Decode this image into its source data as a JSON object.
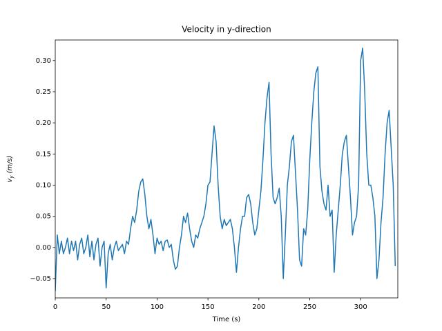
{
  "chart_data": {
    "type": "line",
    "title": "Velocity in y-direction",
    "xlabel": "Time (s)",
    "ylabel": [
      "v",
      "y",
      "(m/s)"
    ],
    "x": [
      0,
      2,
      4,
      6,
      8,
      10,
      12,
      14,
      16,
      18,
      20,
      22,
      24,
      26,
      28,
      30,
      32,
      34,
      36,
      38,
      40,
      42,
      44,
      46,
      48,
      50,
      52,
      54,
      56,
      58,
      60,
      62,
      64,
      66,
      68,
      70,
      72,
      74,
      76,
      78,
      80,
      82,
      84,
      86,
      88,
      90,
      92,
      94,
      96,
      98,
      100,
      102,
      104,
      106,
      108,
      110,
      112,
      114,
      116,
      118,
      120,
      122,
      124,
      126,
      128,
      130,
      132,
      134,
      136,
      138,
      140,
      142,
      144,
      146,
      148,
      150,
      152,
      154,
      156,
      158,
      160,
      162,
      164,
      166,
      168,
      170,
      172,
      174,
      176,
      178,
      180,
      182,
      184,
      186,
      188,
      190,
      192,
      194,
      196,
      198,
      200,
      202,
      204,
      206,
      208,
      210,
      212,
      214,
      216,
      218,
      220,
      222,
      224,
      226,
      228,
      230,
      232,
      234,
      236,
      238,
      240,
      242,
      244,
      246,
      248,
      250,
      252,
      254,
      256,
      258,
      260,
      262,
      264,
      266,
      268,
      270,
      272,
      274,
      276,
      278,
      280,
      282,
      284,
      286,
      288,
      290,
      292,
      294,
      296,
      298,
      300,
      302,
      304,
      306,
      308,
      310,
      312,
      314,
      316,
      318,
      320,
      322,
      324,
      326,
      328,
      330,
      332,
      334
    ],
    "series": [
      {
        "color": "#1f77b4",
        "values": [
          -0.07,
          0.02,
          -0.01,
          0.01,
          -0.01,
          0.0,
          0.015,
          -0.01,
          0.01,
          -0.005,
          0.01,
          -0.02,
          0.005,
          0.015,
          -0.01,
          0.0,
          0.02,
          -0.015,
          0.01,
          -0.02,
          0.005,
          0.015,
          -0.03,
          0.0,
          0.01,
          -0.065,
          -0.01,
          0.005,
          -0.02,
          0.0,
          0.01,
          -0.005,
          0.0,
          0.005,
          -0.01,
          0.01,
          0.005,
          0.03,
          0.05,
          0.04,
          0.06,
          0.09,
          0.105,
          0.11,
          0.085,
          0.05,
          0.03,
          0.045,
          0.02,
          -0.01,
          0.015,
          0.005,
          0.01,
          -0.005,
          0.01,
          0.012,
          0.0,
          0.005,
          -0.02,
          -0.035,
          -0.03,
          0.0,
          0.02,
          0.05,
          0.04,
          0.055,
          0.03,
          0.01,
          0.0,
          0.02,
          0.015,
          0.03,
          0.04,
          0.05,
          0.07,
          0.1,
          0.105,
          0.15,
          0.195,
          0.17,
          0.1,
          0.05,
          0.03,
          0.045,
          0.035,
          0.04,
          0.045,
          0.03,
          0.0,
          -0.04,
          0.0,
          0.03,
          0.05,
          0.05,
          0.08,
          0.085,
          0.07,
          0.04,
          0.02,
          0.03,
          0.06,
          0.09,
          0.14,
          0.2,
          0.24,
          0.265,
          0.15,
          0.08,
          0.07,
          0.08,
          0.095,
          0.05,
          -0.05,
          0.02,
          0.1,
          0.13,
          0.17,
          0.18,
          0.12,
          0.06,
          -0.02,
          -0.03,
          0.03,
          0.02,
          0.06,
          0.14,
          0.2,
          0.25,
          0.28,
          0.29,
          0.13,
          0.09,
          0.07,
          0.06,
          0.1,
          0.05,
          0.06,
          -0.04,
          0.02,
          0.06,
          0.1,
          0.15,
          0.17,
          0.18,
          0.13,
          0.08,
          0.02,
          0.04,
          0.05,
          0.1,
          0.3,
          0.32,
          0.25,
          0.15,
          0.1,
          0.1,
          0.08,
          0.05,
          -0.05,
          -0.02,
          0.04,
          0.08,
          0.15,
          0.2,
          0.22,
          0.16,
          0.1,
          -0.03
        ]
      }
    ],
    "xlim": [
      0,
      336.5
    ],
    "xticks": [
      0,
      50,
      100,
      150,
      200,
      250,
      300
    ],
    "ylim": [
      -0.081,
      0.333
    ],
    "yticks": [
      {
        "value": -0.05,
        "label": "−0.05"
      },
      {
        "value": 0,
        "label": "0.00"
      },
      0.05,
      {
        "value": 0.1,
        "label": "0.10"
      },
      0.15,
      {
        "value": 0.2,
        "label": "0.20"
      },
      0.25,
      {
        "value": 0.3,
        "label": "0.30"
      }
    ],
    "grid": false
  }
}
